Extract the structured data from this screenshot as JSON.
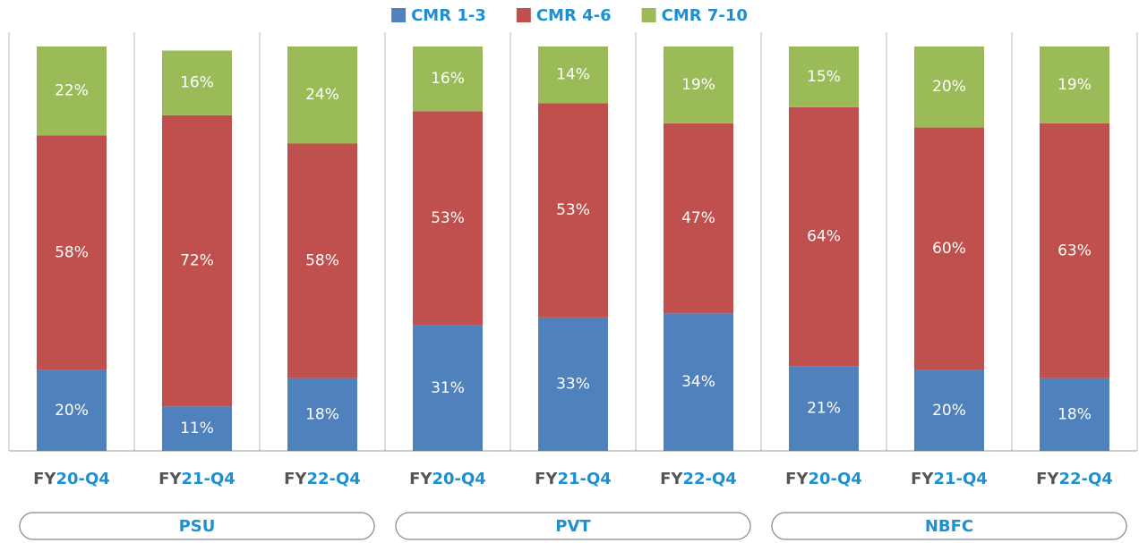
{
  "chart_data": {
    "type": "stacked_bar",
    "categories": [
      "FY20-Q4",
      "FY21-Q4",
      "FY22-Q4",
      "FY20-Q4",
      "FY21-Q4",
      "FY22-Q4",
      "FY20-Q4",
      "FY21-Q4",
      "FY22-Q4"
    ],
    "groups": [
      "PSU",
      "PVT",
      "NBFC"
    ],
    "ylim": [
      0,
      100
    ],
    "series": [
      {
        "name": "CMR 1-3",
        "color": "#4f81bd",
        "values": [
          20,
          11,
          18,
          31,
          33,
          34,
          21,
          20,
          18
        ],
        "value_labels": [
          "20%",
          "11%",
          "18%",
          "31%",
          "33%",
          "34%",
          "21%",
          "20%",
          "18%"
        ]
      },
      {
        "name": "CMR 4-6",
        "color": "#c0504d",
        "values": [
          58,
          72,
          58,
          53,
          53,
          47,
          64,
          60,
          63
        ],
        "value_labels": [
          "58%",
          "72%",
          "58%",
          "53%",
          "53%",
          "47%",
          "64%",
          "60%",
          "63%"
        ]
      },
      {
        "name": "CMR 7-10",
        "color": "#9bbb59",
        "values": [
          22,
          16,
          24,
          16,
          14,
          19,
          15,
          20,
          19
        ],
        "value_labels": [
          "22%",
          "16%",
          "24%",
          "16%",
          "14%",
          "19%",
          "15%",
          "20%",
          "19%"
        ]
      }
    ]
  }
}
